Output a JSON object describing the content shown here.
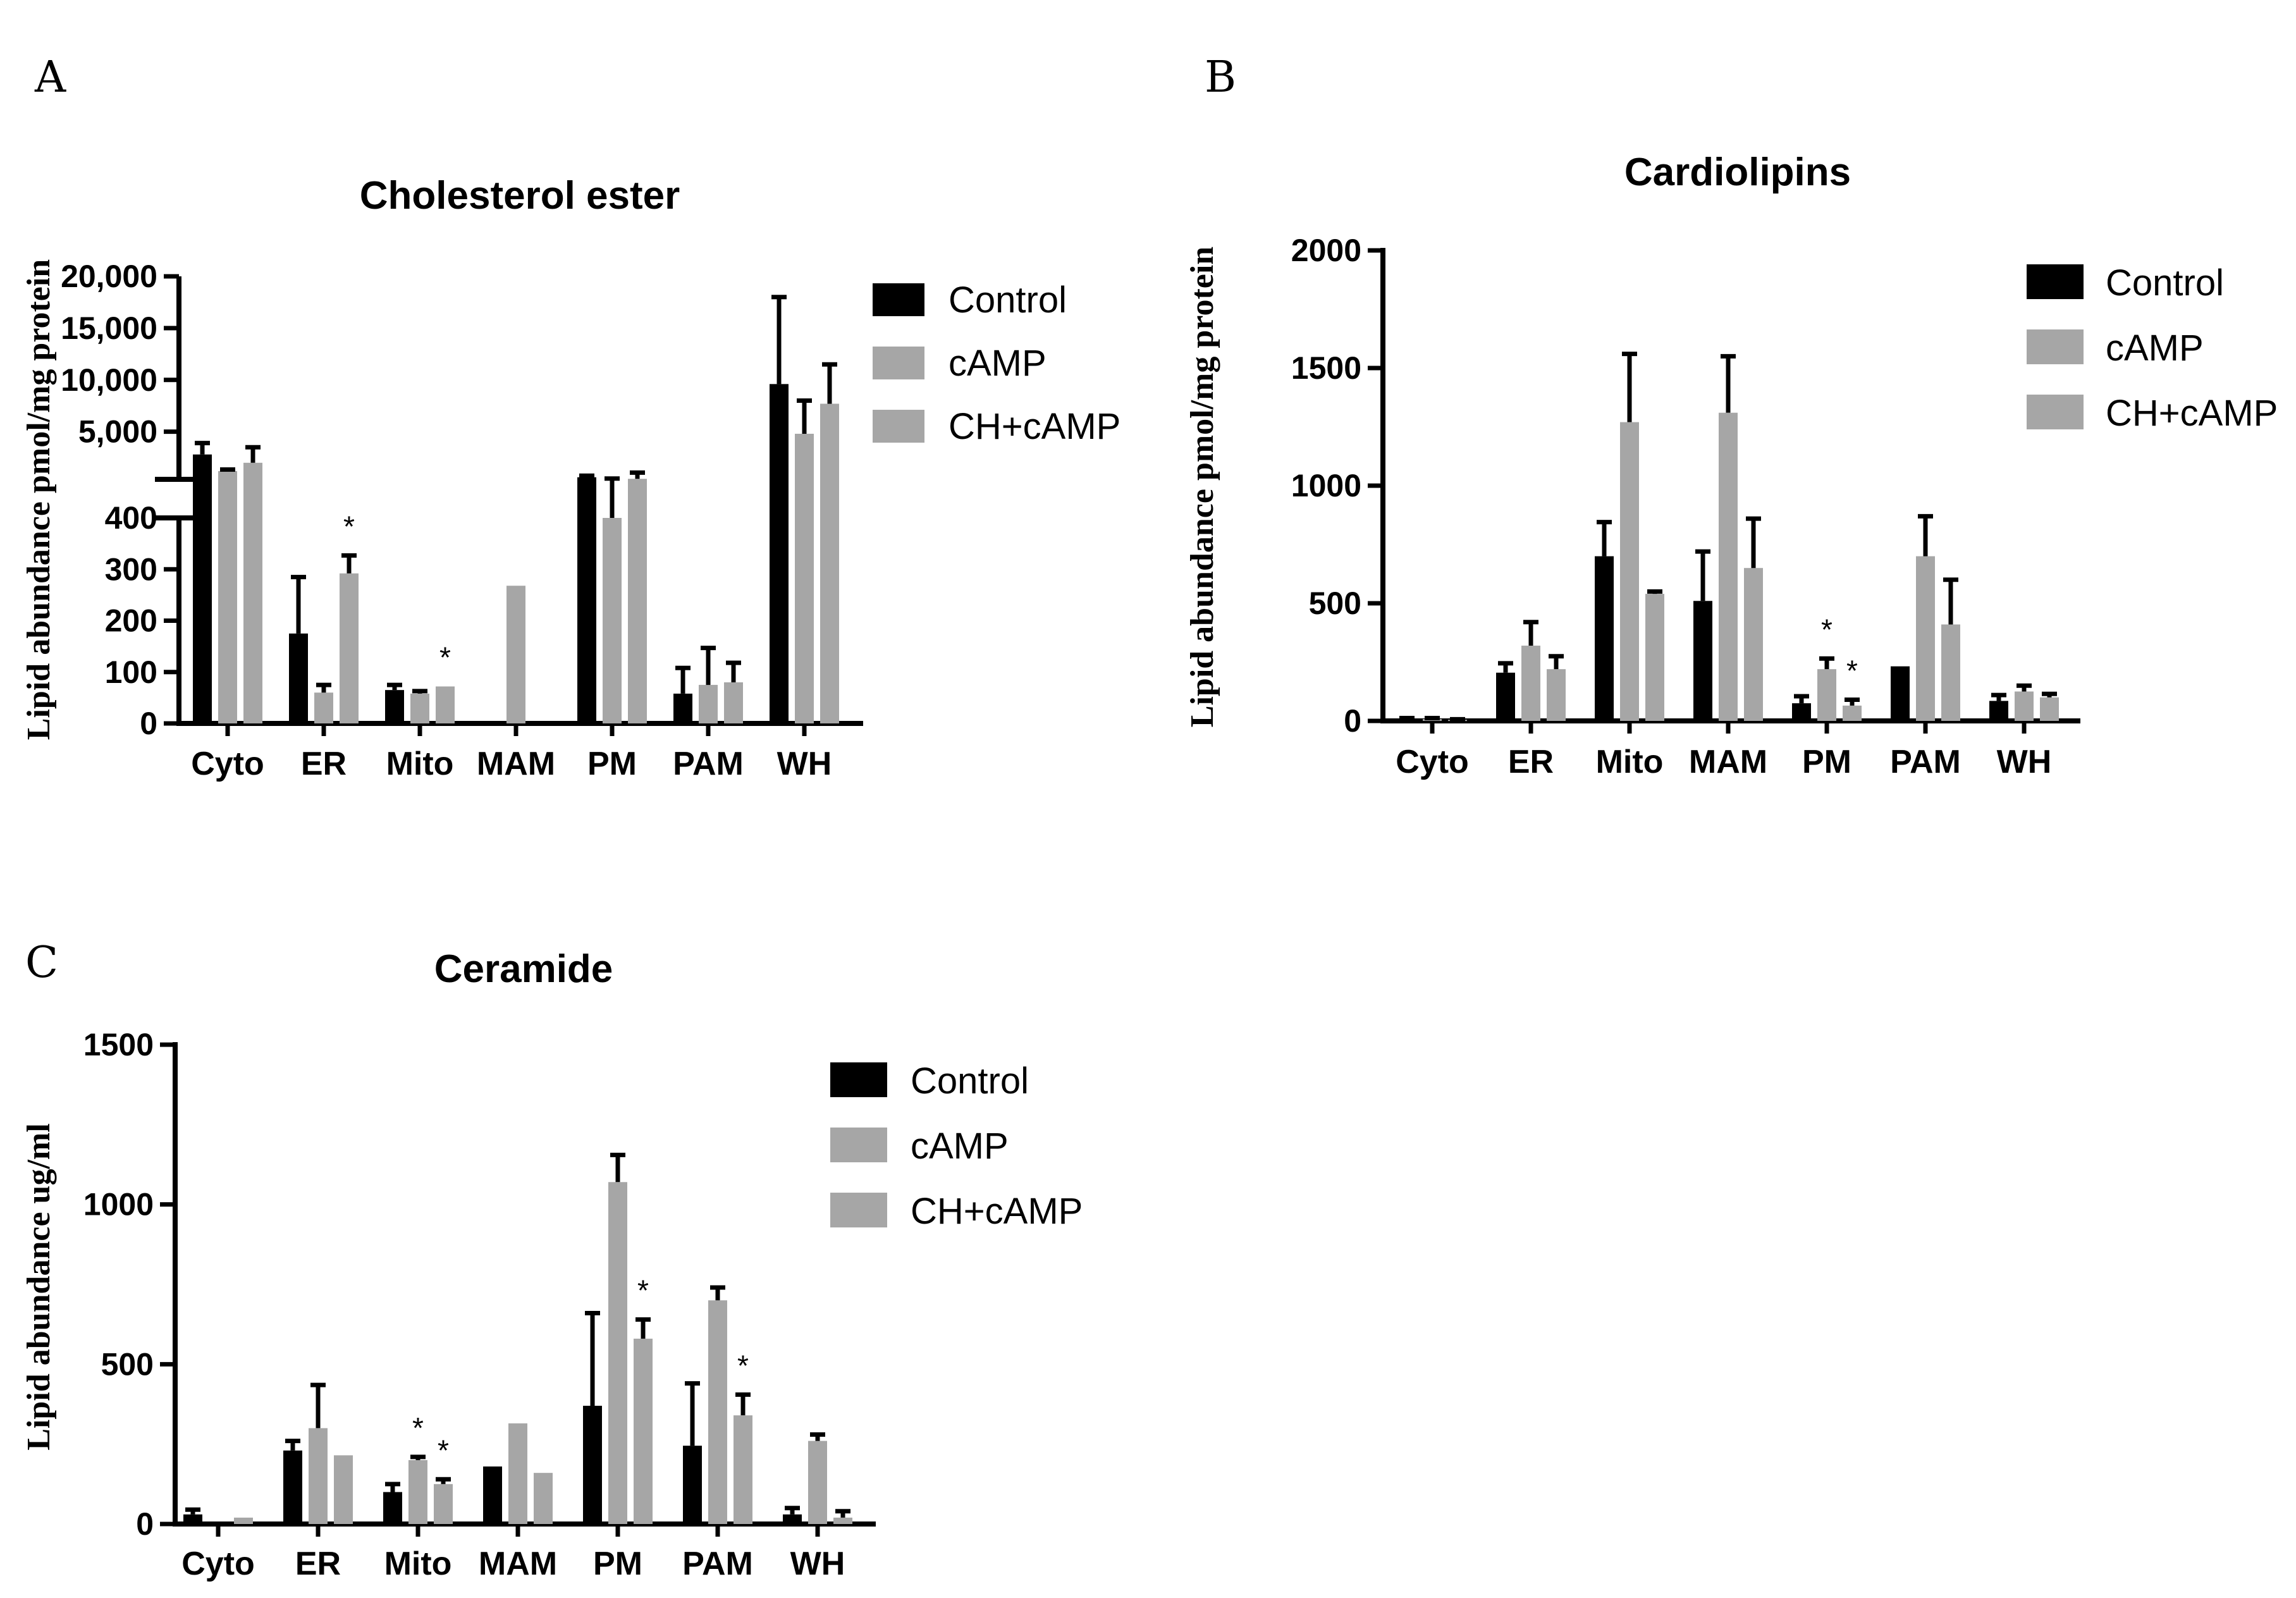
{
  "figure": {
    "colors": {
      "Control": "#000000",
      "cAMP": "#a6a6a6",
      "CH+cAMP": "#a6a6a6",
      "axis": "#000000"
    }
  },
  "chart_data": [
    {
      "panel": "A",
      "type": "bar",
      "title": "Cholesterol ester",
      "ylabel": "Lipid abundance pmol/mg protein",
      "xlabel": "",
      "axis_break": true,
      "lower_ylim": [
        0,
        400
      ],
      "lower_ticks": [
        0,
        100,
        200,
        300,
        400
      ],
      "lower_tick_labels": [
        "0",
        "100",
        "200",
        "300",
        "400"
      ],
      "upper_ylim": [
        400,
        20000
      ],
      "upper_ticks": [
        5000,
        10000,
        15000,
        20000
      ],
      "upper_tick_labels": [
        "5,000",
        "10,000",
        "15,000",
        "20,000"
      ],
      "categories": [
        "Cyto",
        "ER",
        "Mito",
        "MAM",
        "PM",
        "PAM",
        "WH"
      ],
      "legend": [
        "Control",
        "cAMP",
        "CH+cAMP"
      ],
      "series": [
        {
          "name": "Control",
          "values": [
            2800,
            175,
            65,
            0,
            600,
            58,
            9600
          ],
          "errors": [
            1100,
            110,
            10,
            0,
            150,
            50,
            8400
          ]
        },
        {
          "name": "cAMP",
          "values": [
            1200,
            60,
            58,
            268,
            400,
            75,
            4800
          ],
          "errors": [
            150,
            15,
            5,
            0,
            80,
            72,
            3200
          ]
        },
        {
          "name": "CH+cAMP",
          "values": [
            2000,
            292,
            72,
            0,
            450,
            80,
            7700
          ],
          "errors": [
            1500,
            35,
            0,
            0,
            600,
            38,
            3800
          ]
        }
      ],
      "annotations": [
        {
          "text": "*",
          "category": "ER",
          "series": "CH+cAMP"
        },
        {
          "text": "*",
          "category": "Mito",
          "series": "CH+cAMP"
        }
      ]
    },
    {
      "panel": "B",
      "type": "bar",
      "title": "Cardiolipins",
      "ylabel": "Lipid abundance pmol/mg protein",
      "xlabel": "",
      "ylim": [
        0,
        2000
      ],
      "ticks": [
        0,
        500,
        1000,
        1500,
        2000
      ],
      "tick_labels": [
        "0",
        "500",
        "1000",
        "1500",
        "2000"
      ],
      "categories": [
        "Cyto",
        "ER",
        "Mito",
        "MAM",
        "PM",
        "PAM",
        "WH"
      ],
      "legend": [
        "Control",
        "cAMP",
        "CH+cAMP"
      ],
      "series": [
        {
          "name": "Control",
          "values": [
            8,
            205,
            700,
            510,
            75,
            232,
            85
          ],
          "errors": [
            4,
            40,
            145,
            210,
            30,
            0,
            25
          ]
        },
        {
          "name": "cAMP",
          "values": [
            8,
            320,
            1270,
            1310,
            220,
            700,
            125
          ],
          "errors": [
            4,
            100,
            290,
            240,
            45,
            170,
            25
          ]
        },
        {
          "name": "CH+cAMP",
          "values": [
            5,
            220,
            540,
            650,
            65,
            410,
            100
          ],
          "errors": [
            2,
            55,
            10,
            210,
            25,
            190,
            15
          ]
        }
      ],
      "annotations": [
        {
          "text": "*",
          "category": "PM",
          "series": "cAMP"
        },
        {
          "text": "*",
          "category": "PM",
          "series": "CH+cAMP"
        }
      ]
    },
    {
      "panel": "C",
      "type": "bar",
      "title": "Ceramide",
      "ylabel": "Lipid abundance ug/ml",
      "xlabel": "",
      "ylim": [
        0,
        1500
      ],
      "ticks": [
        0,
        500,
        1000,
        1500
      ],
      "tick_labels": [
        "0",
        "500",
        "1000",
        "1500"
      ],
      "categories": [
        "Cyto",
        "ER",
        "Mito",
        "MAM",
        "PM",
        "PAM",
        "WH"
      ],
      "legend": [
        "Control",
        "cAMP",
        "CH+cAMP"
      ],
      "series": [
        {
          "name": "Control",
          "values": [
            30,
            230,
            100,
            180,
            370,
            245,
            30
          ],
          "errors": [
            15,
            30,
            25,
            0,
            290,
            195,
            20
          ]
        },
        {
          "name": "cAMP",
          "values": [
            0,
            300,
            200,
            315,
            1070,
            700,
            260
          ],
          "errors": [
            0,
            135,
            10,
            0,
            85,
            40,
            20
          ]
        },
        {
          "name": "CH+cAMP",
          "values": [
            20,
            215,
            125,
            160,
            580,
            340,
            20
          ],
          "errors": [
            0,
            0,
            15,
            0,
            60,
            65,
            20
          ]
        }
      ],
      "annotations": [
        {
          "text": "*",
          "category": "Mito",
          "series": "cAMP"
        },
        {
          "text": "*",
          "category": "Mito",
          "series": "CH+cAMP"
        },
        {
          "text": "*",
          "category": "PM",
          "series": "CH+cAMP"
        },
        {
          "text": "*",
          "category": "PAM",
          "series": "CH+cAMP"
        }
      ]
    }
  ]
}
